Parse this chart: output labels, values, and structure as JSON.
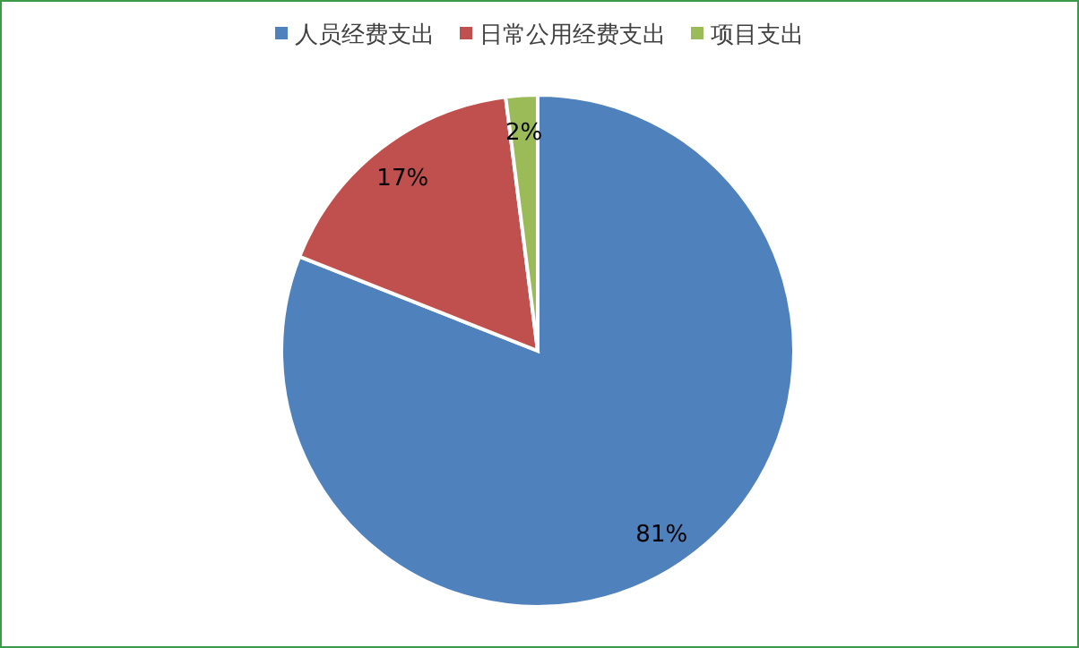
{
  "chart_data": {
    "type": "pie",
    "categories": [
      "人员经费支出",
      "日常公用经费支出",
      "项目支出"
    ],
    "values": [
      81,
      17,
      2
    ],
    "colors": [
      "#4f81bd",
      "#c0504d",
      "#9bbb59"
    ],
    "legend": "top",
    "value_labels": [
      "81%",
      "17%",
      "2%"
    ]
  }
}
